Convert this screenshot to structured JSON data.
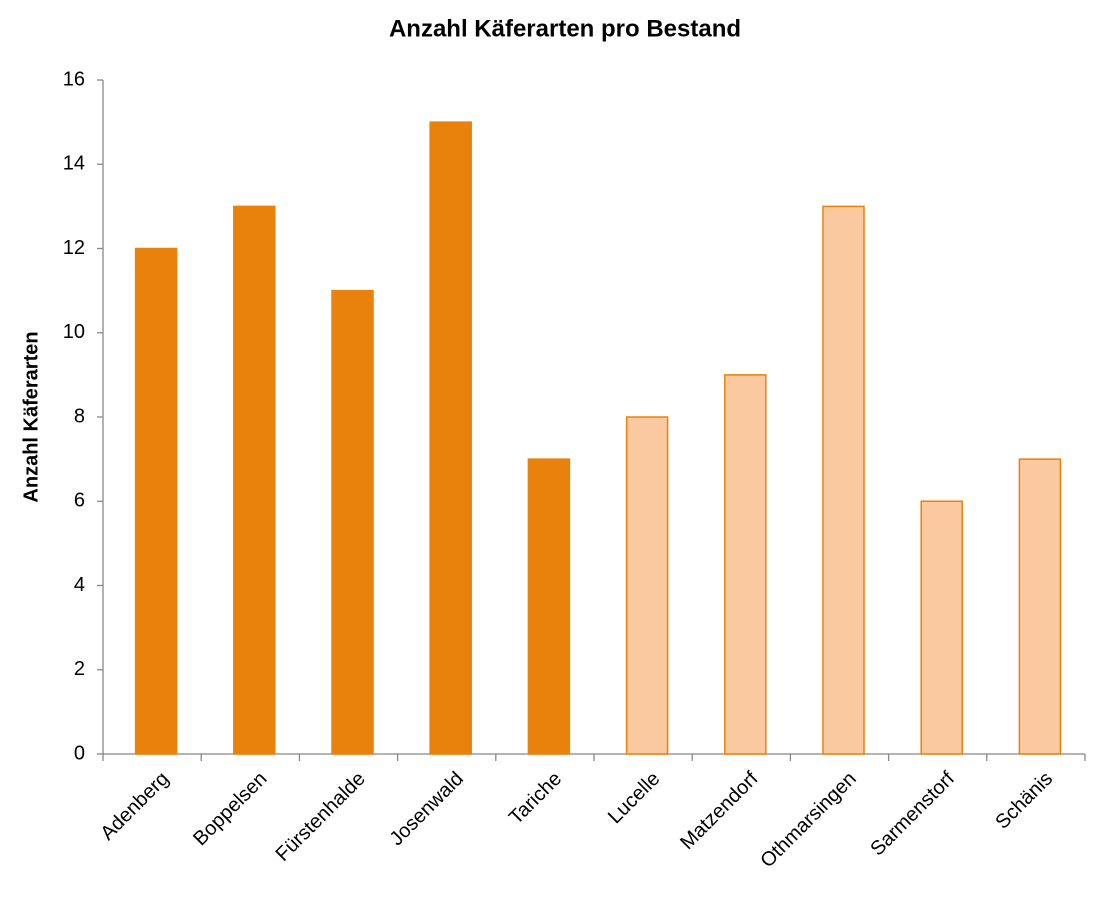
{
  "chart_data": {
    "type": "bar",
    "title": "Anzahl Käferarten pro Bestand",
    "ylabel": "Anzahl Käferarten",
    "categories": [
      "Adenberg",
      "Boppelsen",
      "Fürstenhalde",
      "Josenwald",
      "Tariche",
      "Lucelle",
      "Matzendorf",
      "Othmarsingen",
      "Sarmenstorf",
      "Schänis"
    ],
    "values": [
      12,
      13,
      11,
      15,
      7,
      8,
      9,
      13,
      6,
      7
    ],
    "colors": [
      "#e8820c",
      "#e8820c",
      "#e8820c",
      "#e8820c",
      "#e8820c",
      "#fac9a0",
      "#fac9a0",
      "#fac9a0",
      "#fac9a0",
      "#fac9a0"
    ],
    "edge_color": "#e8820c",
    "ylim": [
      0,
      16
    ],
    "yticks": [
      0,
      2,
      4,
      6,
      8,
      10,
      12,
      14,
      16
    ],
    "grid": false
  }
}
